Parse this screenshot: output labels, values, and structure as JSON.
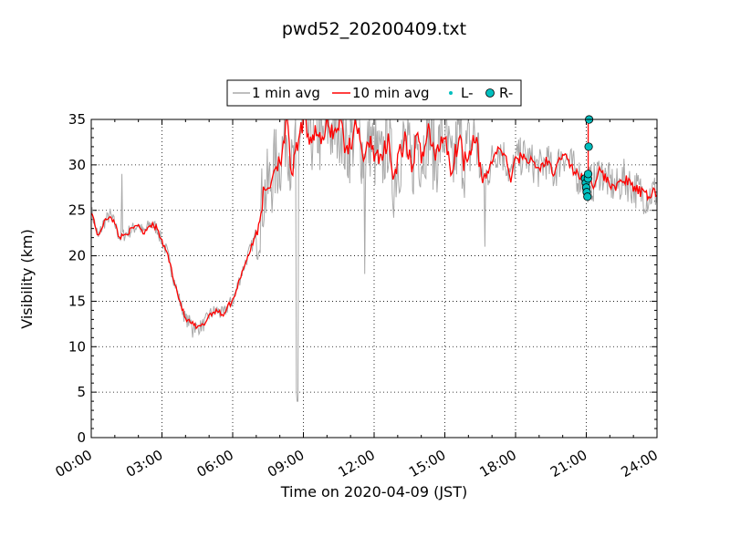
{
  "chart_data": {
    "type": "line",
    "title": "pwd52_20200409.txt",
    "xlabel": "Time on 2020-04-09 (JST)",
    "ylabel": "Visibility (km)",
    "xlim": [
      "00:00",
      "24:00"
    ],
    "ylim": [
      0,
      35
    ],
    "x_ticks": [
      "00:00",
      "03:00",
      "06:00",
      "09:00",
      "12:00",
      "15:00",
      "18:00",
      "21:00",
      "24:00"
    ],
    "y_ticks": [
      "0",
      "5",
      "10",
      "15",
      "20",
      "25",
      "30",
      "35"
    ],
    "grid": true,
    "legend_position": "top-center, above plot",
    "legend": [
      "1 min avg",
      "10 min avg",
      "L-",
      "R-"
    ],
    "colors": {
      "one_min": "#a9a9a9",
      "ten_min": "#ff0000",
      "L": "#00bfbf",
      "R": "#00bfbf"
    },
    "series": [
      {
        "name": "10 min avg",
        "hours": [
          0,
          0.3,
          0.5,
          0.8,
          1.0,
          1.2,
          1.5,
          1.8,
          2.0,
          2.2,
          2.5,
          2.8,
          3.0,
          3.2,
          3.5,
          3.7,
          4.0,
          4.3,
          4.5,
          4.8,
          5.0,
          5.3,
          5.6,
          5.8,
          6.0,
          6.3,
          6.5,
          6.8,
          7.0,
          7.3,
          7.6,
          7.8,
          8.0,
          8.3,
          8.5,
          8.8,
          9.0,
          9.3,
          9.6,
          9.8,
          10.0,
          10.3,
          10.6,
          10.8,
          11.0,
          11.3,
          11.6,
          11.8,
          12.0,
          12.3,
          12.6,
          12.8,
          13.0,
          13.3,
          13.6,
          13.8,
          14.0,
          14.3,
          14.6,
          14.8,
          15.0,
          15.3,
          15.6,
          15.8,
          16.0,
          16.3,
          16.6,
          16.8,
          17.0,
          17.3,
          17.6,
          17.8,
          18.0,
          18.3,
          18.6,
          18.8,
          19.0,
          19.3,
          19.6,
          19.8,
          20.0,
          20.3,
          20.6,
          20.8,
          21.0,
          21.3,
          21.6,
          21.8,
          22.0,
          22.3,
          22.6,
          22.8,
          23.0,
          23.3,
          23.6,
          23.8,
          24.0
        ],
        "values": [
          25.0,
          22.0,
          23.5,
          24.5,
          23.5,
          22.0,
          22.5,
          23.0,
          23.5,
          22.5,
          23.5,
          23.0,
          21.5,
          20.5,
          17.5,
          15.5,
          13.0,
          12.5,
          12.0,
          12.5,
          13.5,
          14.0,
          13.5,
          14.5,
          15.0,
          17.5,
          19.0,
          21.0,
          22.5,
          26.5,
          28.0,
          30.0,
          30.5,
          34.5,
          29.0,
          32.5,
          35.0,
          33.0,
          34.0,
          32.0,
          34.5,
          33.5,
          35.0,
          31.5,
          32.5,
          34.5,
          30.0,
          33.0,
          31.5,
          30.0,
          33.5,
          28.0,
          30.5,
          32.5,
          29.5,
          33.0,
          31.0,
          34.0,
          30.5,
          32.5,
          33.5,
          29.0,
          33.5,
          30.5,
          31.5,
          33.5,
          28.0,
          29.0,
          30.5,
          32.0,
          30.5,
          28.5,
          30.5,
          31.0,
          30.5,
          30.0,
          29.5,
          30.5,
          29.0,
          30.0,
          31.5,
          30.0,
          29.0,
          28.5,
          28.0,
          28.0,
          29.5,
          28.5,
          28.0,
          27.5,
          28.5,
          28.0,
          27.5,
          27.0,
          26.5,
          27.0,
          27.0
        ]
      },
      {
        "name": "1 min avg",
        "note_spikes": [
          [
            8.75,
            4.0
          ],
          [
            8.7,
            5.0
          ],
          [
            11.6,
            18.0
          ],
          [
            16.7,
            21.0
          ],
          [
            4.3,
            11.0
          ],
          [
            1.3,
            29.0
          ]
        ]
      },
      {
        "name": "R-",
        "hours": [
          20.95,
          20.98,
          21.0,
          21.02,
          21.05,
          21.07,
          21.08,
          21.1,
          21.12
        ],
        "values": [
          28.5,
          28.0,
          27.5,
          27.0,
          26.5,
          28.5,
          29.0,
          32.0,
          35.0
        ]
      },
      {
        "name": "L-",
        "hours": [
          21.1
        ],
        "values": [
          34.8
        ]
      }
    ]
  }
}
